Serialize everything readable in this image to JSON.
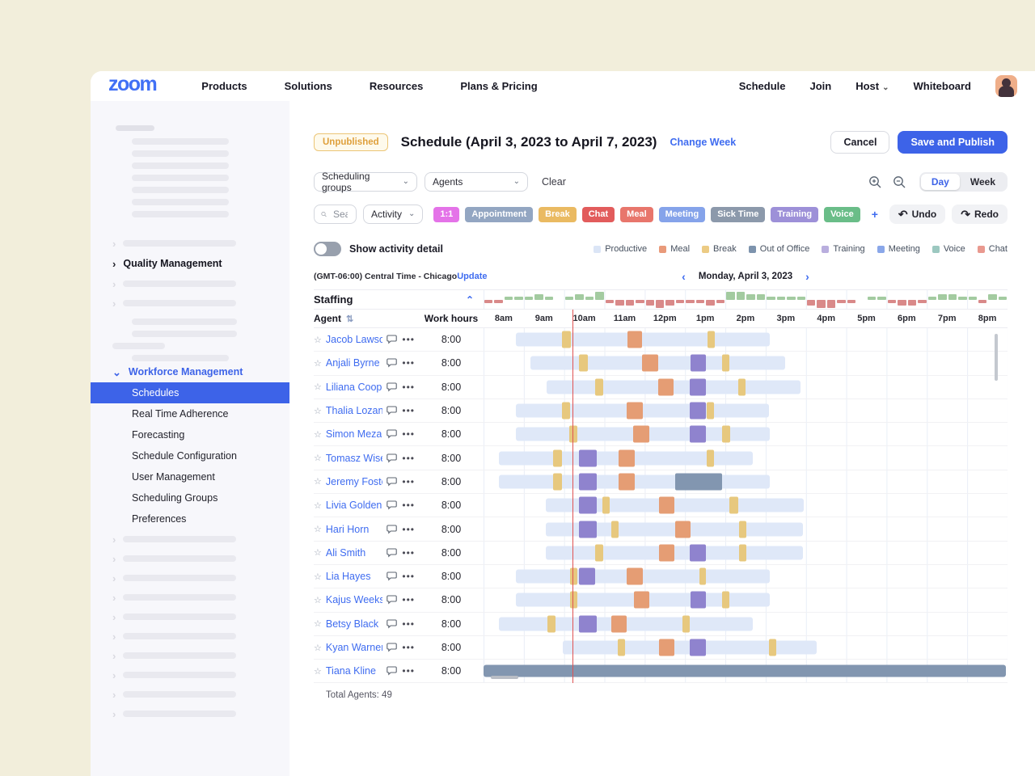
{
  "topnav": {
    "logo": "zoom",
    "left_items": [
      "Products",
      "Solutions",
      "Resources",
      "Plans & Pricing"
    ],
    "right_items": [
      "Schedule",
      "Join",
      "Host",
      "Whiteboard"
    ]
  },
  "sidebar": {
    "quality_management": "Quality Management",
    "workforce_management": "Workforce Management",
    "items": [
      "Schedules",
      "Real Time Adherence",
      "Forecasting",
      "Schedule Configuration",
      "User Management",
      "Scheduling Groups",
      "Preferences"
    ],
    "selected": "Schedules"
  },
  "header": {
    "status_badge": "Unpublished",
    "title": "Schedule (April 3, 2023 to April 7, 2023)",
    "change_week": "Change Week",
    "cancel": "Cancel",
    "save": "Save and Publish"
  },
  "filters": {
    "scheduling_groups": "Scheduling groups",
    "agents": "Agents",
    "clear": "Clear",
    "day": "Day",
    "week": "Week",
    "search_placeholder": "Search...",
    "activity": "Activity",
    "add_chip": "+",
    "undo": "Undo",
    "redo": "Redo",
    "show_activity_detail": "Show activity detail",
    "chips": [
      {
        "label": "1:1",
        "color": "#e473e8"
      },
      {
        "label": "Appointment",
        "color": "#93a6c2"
      },
      {
        "label": "Break",
        "color": "#eaba62"
      },
      {
        "label": "Chat",
        "color": "#e25c5c"
      },
      {
        "label": "Meal",
        "color": "#e8766c"
      },
      {
        "label": "Meeting",
        "color": "#85a3ea"
      },
      {
        "label": "Sick Time",
        "color": "#8c99ab"
      },
      {
        "label": "Training",
        "color": "#9d90d8"
      },
      {
        "label": "Voice",
        "color": "#6abd88"
      }
    ]
  },
  "legend": [
    {
      "label": "Productive",
      "color": "#dbe5f6"
    },
    {
      "label": "Meal",
      "color": "#e99a7a"
    },
    {
      "label": "Break",
      "color": "#eccb84"
    },
    {
      "label": "Out of Office",
      "color": "#7d93ad"
    },
    {
      "label": "Training",
      "color": "#b9aede"
    },
    {
      "label": "Meeting",
      "color": "#8aa7e9"
    },
    {
      "label": "Voice",
      "color": "#9cc8c0"
    },
    {
      "label": "Chat",
      "color": "#e9998f"
    }
  ],
  "schedule": {
    "timezone": "(GMT-06:00) Central Time - Chicago",
    "update": "Update",
    "date": "Monday, April 3, 2023",
    "staffing_label": "Staffing",
    "columns": {
      "agent": "Agent",
      "work_hours": "Work hours"
    },
    "hours": [
      "8am",
      "9am",
      "10am",
      "11am",
      "12pm",
      "1pm",
      "2pm",
      "3pm",
      "4pm",
      "5pm",
      "6pm",
      "7pm",
      "8pm"
    ],
    "timeline_hours_span": 13,
    "current_time_offset_hours": 2.2,
    "staffing_bars": [
      -1,
      -1,
      1,
      1,
      1,
      2,
      1,
      0,
      1,
      2,
      1,
      3,
      -1,
      -2,
      -2,
      -1,
      -2,
      -3,
      -2,
      -1,
      -1,
      -1,
      -2,
      -1,
      3,
      3,
      2,
      2,
      1,
      1,
      1,
      1,
      -2,
      -3,
      -3,
      -1,
      -1,
      0,
      1,
      1,
      -1,
      -2,
      -2,
      -1,
      1,
      2,
      2,
      1,
      1,
      -1,
      2,
      1
    ],
    "agents": [
      {
        "name": "Jacob Lawson",
        "work_hours": "8:00",
        "shift": [
          0.8,
          7.1
        ],
        "blocks": [
          [
            "break",
            1.94,
            2.16
          ],
          [
            "meal",
            3.57,
            3.94
          ],
          [
            "break",
            5.55,
            5.73
          ]
        ]
      },
      {
        "name": "Anjali Byrne",
        "work_hours": "8:00",
        "shift": [
          1.16,
          7.49
        ],
        "blocks": [
          [
            "break",
            2.37,
            2.59
          ],
          [
            "meal",
            3.94,
            4.33
          ],
          [
            "training",
            5.14,
            5.51
          ],
          [
            "break",
            5.92,
            6.1
          ]
        ]
      },
      {
        "name": "Liliana Cooper",
        "work_hours": "8:00",
        "shift": [
          1.57,
          7.86
        ],
        "blocks": [
          [
            "break",
            2.76,
            2.96
          ],
          [
            "meal",
            4.33,
            4.71
          ],
          [
            "training",
            5.12,
            5.51
          ],
          [
            "break",
            6.31,
            6.51
          ]
        ]
      },
      {
        "name": "Thalia Lozano",
        "work_hours": "8:00",
        "shift": [
          0.8,
          7.08
        ],
        "blocks": [
          [
            "break",
            1.94,
            2.14
          ],
          [
            "meal",
            3.55,
            3.96
          ],
          [
            "training",
            5.12,
            5.51
          ],
          [
            "break",
            5.53,
            5.71
          ]
        ]
      },
      {
        "name": "Simon Meza",
        "work_hours": "8:00",
        "shift": [
          0.8,
          7.1
        ],
        "blocks": [
          [
            "break",
            2.12,
            2.33
          ],
          [
            "meal",
            3.71,
            4.12
          ],
          [
            "training",
            5.12,
            5.51
          ],
          [
            "break",
            5.92,
            6.12
          ]
        ]
      },
      {
        "name": "Tomasz Wise",
        "work_hours": "8:00",
        "shift": [
          0.39,
          6.69
        ],
        "blocks": [
          [
            "break",
            1.73,
            1.94
          ],
          [
            "training",
            2.37,
            2.8
          ],
          [
            "meal",
            3.35,
            3.76
          ],
          [
            "break",
            5.53,
            5.71
          ]
        ]
      },
      {
        "name": "Jeremy Foster",
        "work_hours": "8:00",
        "shift": [
          0.39,
          7.1
        ],
        "blocks": [
          [
            "break",
            1.73,
            1.94
          ],
          [
            "training",
            2.37,
            2.8
          ],
          [
            "meal",
            3.35,
            3.76
          ],
          [
            "ooo",
            4.76,
            5.92
          ]
        ]
      },
      {
        "name": "Livia Golden",
        "work_hours": "8:00",
        "shift": [
          1.55,
          7.94
        ],
        "blocks": [
          [
            "training",
            2.37,
            2.8
          ],
          [
            "break",
            2.94,
            3.12
          ],
          [
            "meal",
            4.35,
            4.73
          ],
          [
            "break",
            6.1,
            6.31
          ]
        ]
      },
      {
        "name": "Hari Horn",
        "work_hours": "8:00",
        "shift": [
          1.55,
          7.92
        ],
        "blocks": [
          [
            "training",
            2.37,
            2.8
          ],
          [
            "break",
            3.16,
            3.35
          ],
          [
            "meal",
            4.76,
            5.14
          ],
          [
            "break",
            6.33,
            6.53
          ]
        ]
      },
      {
        "name": "Ali Smith",
        "work_hours": "8:00",
        "shift": [
          1.55,
          7.92
        ],
        "blocks": [
          [
            "break",
            2.76,
            2.96
          ],
          [
            "meal",
            4.35,
            4.73
          ],
          [
            "training",
            5.12,
            5.51
          ],
          [
            "break",
            6.33,
            6.53
          ]
        ]
      },
      {
        "name": "Lia Hayes",
        "work_hours": "8:00",
        "shift": [
          0.8,
          7.1
        ],
        "blocks": [
          [
            "break",
            2.14,
            2.33
          ],
          [
            "training",
            2.37,
            2.76
          ],
          [
            "meal",
            3.55,
            3.96
          ],
          [
            "break",
            5.35,
            5.51
          ]
        ]
      },
      {
        "name": "Kajus Weeks",
        "work_hours": "8:00",
        "shift": [
          0.8,
          7.1
        ],
        "blocks": [
          [
            "break",
            2.14,
            2.33
          ],
          [
            "meal",
            3.73,
            4.12
          ],
          [
            "training",
            5.14,
            5.51
          ],
          [
            "break",
            5.92,
            6.1
          ]
        ]
      },
      {
        "name": "Betsy Black",
        "work_hours": "8:00",
        "shift": [
          0.39,
          6.69
        ],
        "blocks": [
          [
            "break",
            1.59,
            1.78
          ],
          [
            "training",
            2.37,
            2.8
          ],
          [
            "meal",
            3.16,
            3.55
          ],
          [
            "break",
            4.94,
            5.12
          ]
        ]
      },
      {
        "name": "Kyan Warner",
        "work_hours": "8:00",
        "shift": [
          1.96,
          8.27
        ],
        "blocks": [
          [
            "break",
            3.33,
            3.51
          ],
          [
            "meal",
            4.35,
            4.73
          ],
          [
            "training",
            5.12,
            5.51
          ],
          [
            "break",
            7.08,
            7.27
          ]
        ]
      },
      {
        "name": "Tiana Kline",
        "work_hours": "8:00",
        "shift": null,
        "blocks": [
          [
            "ooo",
            0,
            12.96
          ]
        ]
      }
    ],
    "total": "Total Agents: 49"
  },
  "colors": {
    "accent": "#3d63e8",
    "link": "#3f6cf0",
    "logo_blue": "#4170f5",
    "badge_text": "#dfa03c",
    "badge_border": "#ecc575",
    "badge_bg": "#fefaec",
    "staffing_up": "#a3cba0",
    "staffing_down": "#d98989",
    "current_time": "#e05252",
    "blocks": {
      "productive": "#dfe8f8",
      "break": "#e7c87e",
      "meal": "#e59d74",
      "training": "#8f83ce",
      "ooo": "#8296b0"
    }
  }
}
